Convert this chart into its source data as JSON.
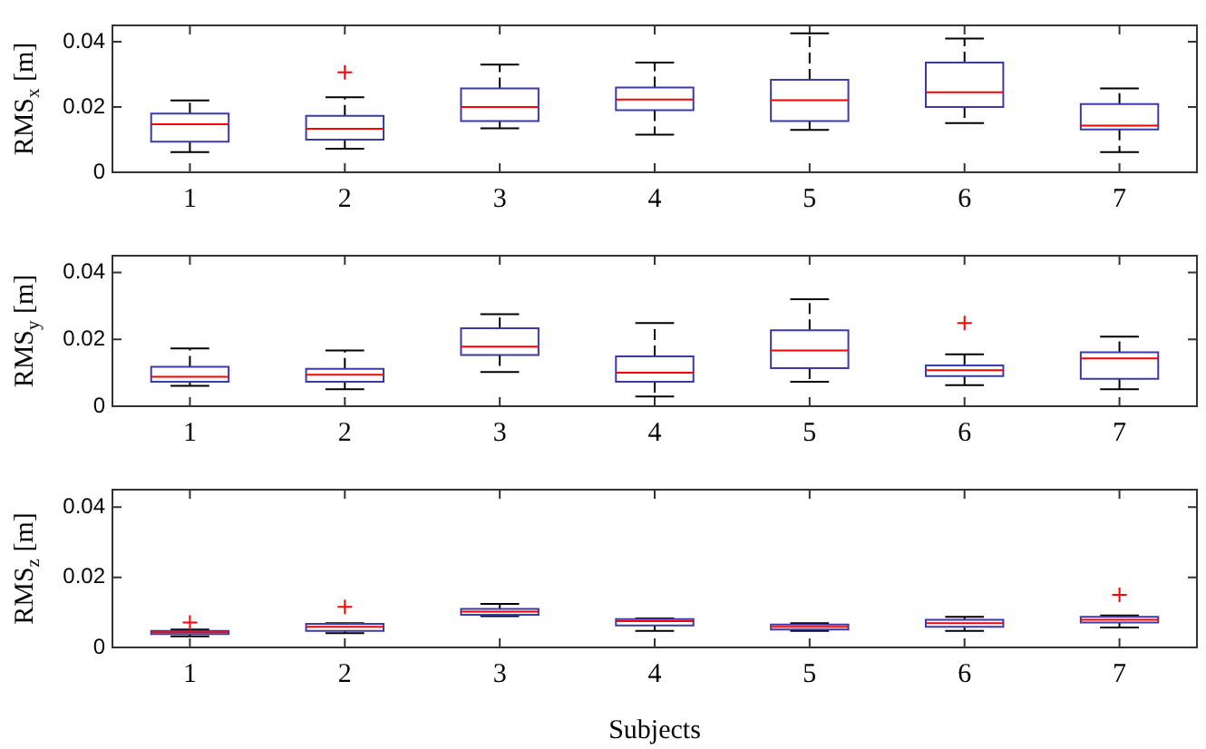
{
  "chart_data": [
    {
      "type": "box",
      "ylabel": "RMS$_{x}$ [m]",
      "categories": [
        "1",
        "2",
        "3",
        "4",
        "5",
        "6",
        "7"
      ],
      "ylim": [
        0,
        0.045
      ],
      "yticks": [
        0,
        0.02,
        0.04
      ],
      "grid": false,
      "legend": false,
      "marker": "cross",
      "line_style": "dashed",
      "series": [
        {
          "color": "#3a3aa8",
          "boxes": [
            {
              "low": 0.0062,
              "q1": 0.0094,
              "median": 0.0147,
              "q3": 0.018,
              "high": 0.022
            },
            {
              "low": 0.0072,
              "q1": 0.01,
              "median": 0.0133,
              "q3": 0.0173,
              "high": 0.023,
              "outliers": [
                0.0306
              ]
            },
            {
              "low": 0.0135,
              "q1": 0.0157,
              "median": 0.02,
              "q3": 0.0257,
              "high": 0.033
            },
            {
              "low": 0.0115,
              "q1": 0.019,
              "median": 0.0223,
              "q3": 0.026,
              "high": 0.0336
            },
            {
              "low": 0.013,
              "q1": 0.0157,
              "median": 0.0221,
              "q3": 0.0283,
              "high": 0.0426
            },
            {
              "low": 0.0151,
              "q1": 0.02,
              "median": 0.0245,
              "q3": 0.0336,
              "high": 0.041
            },
            {
              "low": 0.0062,
              "q1": 0.0131,
              "median": 0.0143,
              "q3": 0.0209,
              "high": 0.0257
            }
          ]
        }
      ]
    },
    {
      "type": "box",
      "ylabel": "RMS$_{y}$ [m]",
      "categories": [
        "1",
        "2",
        "3",
        "4",
        "5",
        "6",
        "7"
      ],
      "ylim": [
        0,
        0.045
      ],
      "yticks": [
        0,
        0.02,
        0.04
      ],
      "grid": false,
      "legend": false,
      "marker": "cross",
      "line_style": "dashed",
      "series": [
        {
          "color": "#3a3aa8",
          "boxes": [
            {
              "low": 0.0061,
              "q1": 0.0073,
              "median": 0.0088,
              "q3": 0.0118,
              "high": 0.0173
            },
            {
              "low": 0.0051,
              "q1": 0.0073,
              "median": 0.0094,
              "q3": 0.0112,
              "high": 0.0167
            },
            {
              "low": 0.0102,
              "q1": 0.0153,
              "median": 0.0178,
              "q3": 0.0233,
              "high": 0.0275
            },
            {
              "low": 0.0029,
              "q1": 0.0073,
              "median": 0.01,
              "q3": 0.0149,
              "high": 0.0249
            },
            {
              "low": 0.0073,
              "q1": 0.0114,
              "median": 0.0167,
              "q3": 0.0227,
              "high": 0.032
            },
            {
              "low": 0.0063,
              "q1": 0.009,
              "median": 0.0108,
              "q3": 0.0122,
              "high": 0.0155,
              "outliers": [
                0.0249
              ]
            },
            {
              "low": 0.0051,
              "q1": 0.0082,
              "median": 0.0143,
              "q3": 0.0161,
              "high": 0.0208
            }
          ]
        }
      ]
    },
    {
      "type": "box",
      "ylabel": "RMS$_{z}$ [m]",
      "xlabel": "Subjects",
      "categories": [
        "1",
        "2",
        "3",
        "4",
        "5",
        "6",
        "7"
      ],
      "ylim": [
        0,
        0.045
      ],
      "yticks": [
        0,
        0.02,
        0.04
      ],
      "grid": false,
      "legend": false,
      "marker": "cross",
      "line_style": "dashed",
      "series": [
        {
          "color": "#3a3aa8",
          "boxes": [
            {
              "low": 0.0032,
              "q1": 0.0038,
              "median": 0.0043,
              "q3": 0.0047,
              "high": 0.0051,
              "outliers": [
                0.0071
              ]
            },
            {
              "low": 0.0041,
              "q1": 0.0047,
              "median": 0.0059,
              "q3": 0.0067,
              "high": 0.0069,
              "outliers": [
                0.0116
              ]
            },
            {
              "low": 0.0089,
              "q1": 0.0093,
              "median": 0.0102,
              "q3": 0.011,
              "high": 0.0124
            },
            {
              "low": 0.0047,
              "q1": 0.0063,
              "median": 0.0075,
              "q3": 0.0081,
              "high": 0.0083
            },
            {
              "low": 0.0047,
              "q1": 0.0051,
              "median": 0.0059,
              "q3": 0.0065,
              "high": 0.0069
            },
            {
              "low": 0.0047,
              "q1": 0.0059,
              "median": 0.0069,
              "q3": 0.0079,
              "high": 0.0087
            },
            {
              "low": 0.0057,
              "q1": 0.0071,
              "median": 0.0079,
              "q3": 0.0087,
              "high": 0.0091,
              "outliers": [
                0.015
              ]
            }
          ]
        }
      ]
    }
  ]
}
